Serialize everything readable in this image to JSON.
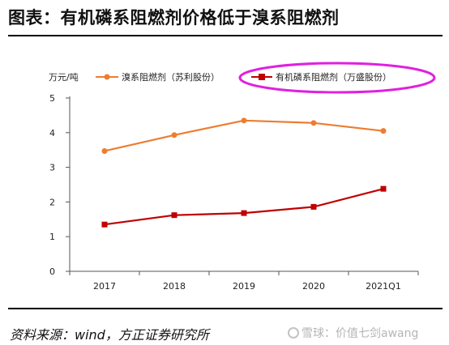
{
  "header": {
    "title": "图表：有机磷系阻燃剂价格低于溴系阻燃剂"
  },
  "footer": {
    "source": "资料来源：wind，方正证券研究所",
    "watermark": "雪球：价值七剑awang",
    "watermark_icon": "snowball-icon"
  },
  "chart_data": {
    "type": "line",
    "unit_label": "万元/吨",
    "categories": [
      "2017",
      "2018",
      "2019",
      "2020",
      "2021Q1"
    ],
    "ylim": [
      0,
      5
    ],
    "yticks": [
      0,
      1,
      2,
      3,
      4,
      5
    ],
    "grid": false,
    "legend_position": "top",
    "series": [
      {
        "name": "溴系阻燃剂（苏利股份）",
        "color": "#ED7D31",
        "marker": "circle",
        "values": [
          3.47,
          3.93,
          4.35,
          4.28,
          4.05
        ]
      },
      {
        "name": "有机磷系阻燃剂（万盛股份）",
        "color": "#C00000",
        "marker": "square",
        "values": [
          1.35,
          1.62,
          1.68,
          1.86,
          2.38
        ]
      }
    ],
    "highlight": {
      "target": "有机磷系阻燃剂（万盛股份）",
      "shape": "ellipse",
      "color": "#E020E0"
    }
  }
}
